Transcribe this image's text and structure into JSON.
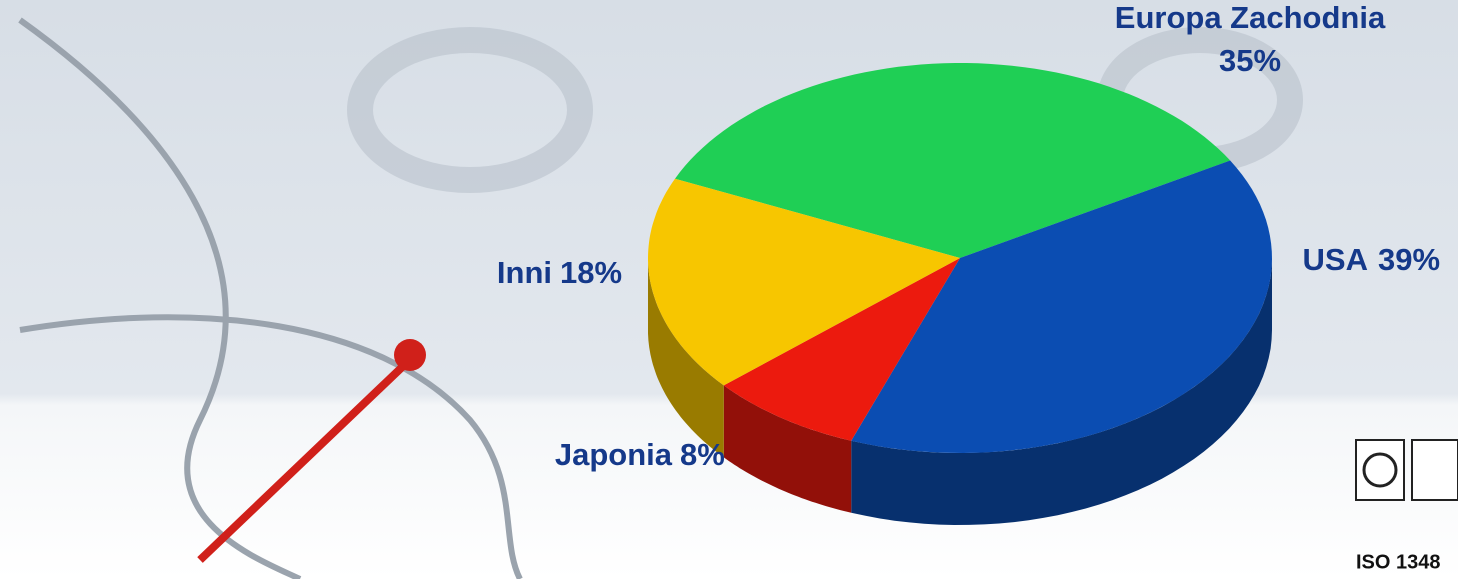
{
  "chart_data": {
    "type": "pie",
    "categories": [
      "Europa Zachodnia",
      "USA",
      "Japonia",
      "Inni"
    ],
    "values": [
      35,
      39,
      8,
      18
    ],
    "value_labels": [
      "35%",
      "39%",
      "8%",
      "18%"
    ],
    "colors": [
      "#1fcf55",
      "#0b4db2",
      "#ec1a0e",
      "#f7c600"
    ]
  },
  "badge": {
    "text": "ISO 1348"
  }
}
